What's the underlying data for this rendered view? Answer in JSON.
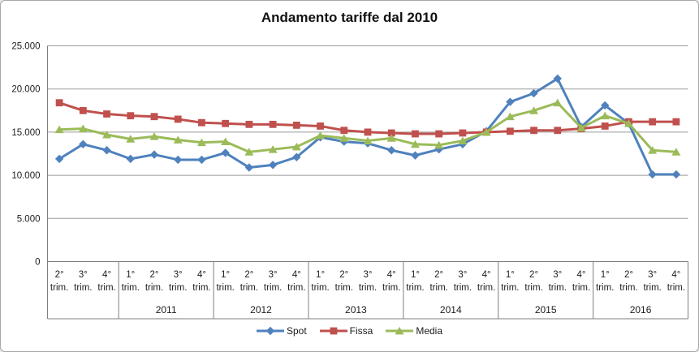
{
  "chart": {
    "title": "Andamento tariffe dal 2010",
    "legend": [
      {
        "label": "Spot",
        "color": "#4F81BD",
        "marker": "diamond"
      },
      {
        "label": "Fissa",
        "color": "#C0504D",
        "marker": "square"
      },
      {
        "label": "Media",
        "color": "#9BBB59",
        "marker": "triangle"
      }
    ]
  },
  "chart_data": {
    "type": "line",
    "title": "Andamento tariffe dal 2010",
    "xlabel": "",
    "ylabel": "",
    "ylim": [
      0,
      25000
    ],
    "grid": "horizontal",
    "legend_position": "bottom",
    "y_ticks": [
      {
        "label": "25.000",
        "value": 25000
      },
      {
        "label": "20.000",
        "value": 20000
      },
      {
        "label": "15.000",
        "value": 15000
      },
      {
        "label": "10.000",
        "value": 10000
      },
      {
        "label": "5.000",
        "value": 5000
      },
      {
        "label": "0",
        "value": 0
      }
    ],
    "x_quarter_labels": [
      "2°",
      "3°",
      "4°",
      "1°",
      "2°",
      "3°",
      "4°",
      "1°",
      "2°",
      "3°",
      "4°",
      "1°",
      "2°",
      "3°",
      "4°",
      "1°",
      "2°",
      "3°",
      "4°",
      "1°",
      "2°",
      "3°",
      "4°",
      "1°",
      "2°",
      "3°",
      "4°"
    ],
    "x_quarter_suffix": "trim.",
    "year_groups": [
      {
        "label": "",
        "count": 3
      },
      {
        "label": "2011",
        "count": 4
      },
      {
        "label": "2012",
        "count": 4
      },
      {
        "label": "2013",
        "count": 4
      },
      {
        "label": "2014",
        "count": 4
      },
      {
        "label": "2015",
        "count": 4
      },
      {
        "label": "2016",
        "count": 4
      }
    ],
    "series": [
      {
        "name": "Spot",
        "color": "#4F81BD",
        "marker": "diamond",
        "values": [
          11900,
          13600,
          12900,
          11900,
          12400,
          11800,
          11800,
          12600,
          10900,
          11200,
          12100,
          14400,
          13900,
          13700,
          12900,
          12300,
          13000,
          13600,
          15100,
          18500,
          19500,
          21200,
          15600,
          18100,
          16000,
          10100,
          10100
        ]
      },
      {
        "name": "Fissa",
        "color": "#C0504D",
        "marker": "square",
        "values": [
          18400,
          17500,
          17100,
          16900,
          16800,
          16500,
          16100,
          16000,
          15900,
          15900,
          15800,
          15700,
          15200,
          15000,
          14900,
          14800,
          14800,
          14900,
          15000,
          15100,
          15200,
          15200,
          15400,
          15700,
          16200,
          16200,
          16200
        ]
      },
      {
        "name": "Media",
        "color": "#9BBB59",
        "marker": "triangle",
        "values": [
          15300,
          15400,
          14700,
          14200,
          14500,
          14100,
          13800,
          13900,
          12700,
          13000,
          13300,
          14600,
          14300,
          14000,
          14300,
          13600,
          13500,
          14000,
          15000,
          16800,
          17500,
          18400,
          15500,
          16900,
          16000,
          12900,
          12700
        ]
      }
    ]
  }
}
